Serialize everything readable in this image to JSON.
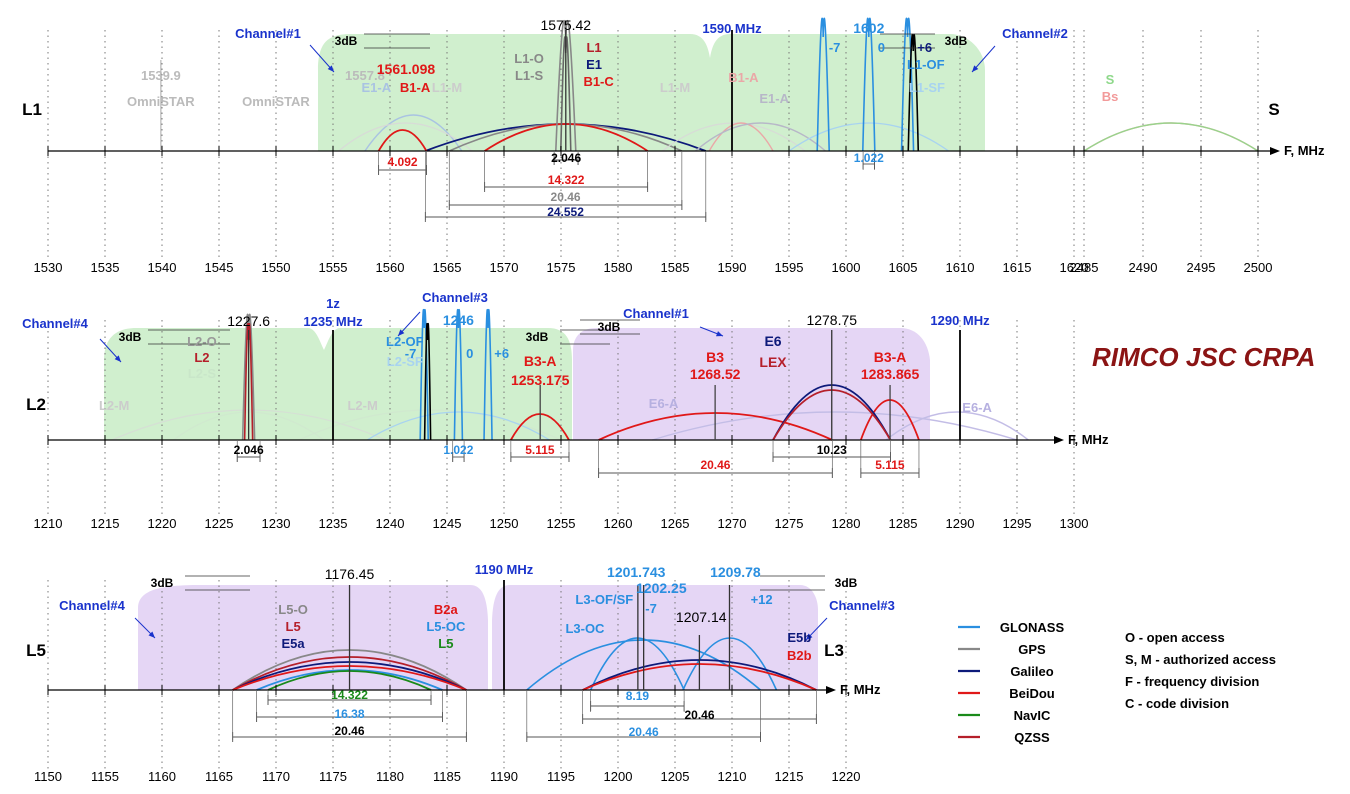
{
  "brand": "RIMCO JSC CRPA",
  "colors": {
    "glonass": "#2a8fe0",
    "gps": "#888888",
    "galileo": "#0d1a7a",
    "beidou": "#e01818",
    "navic": "#1a8a1a",
    "qzss": "#b51f2a",
    "channel_green": "#c8ecc6",
    "channel_purple": "#e2d2f4",
    "channel_label": "#1a33cc",
    "axis": "#000000"
  },
  "legend": [
    {
      "name": "GLONASS",
      "color": "#2a8fe0"
    },
    {
      "name": "GPS",
      "color": "#888888"
    },
    {
      "name": "Galileo",
      "color": "#0d1a7a"
    },
    {
      "name": "BeiDou",
      "color": "#e01818"
    },
    {
      "name": "NavIC",
      "color": "#1a8a1a"
    },
    {
      "name": "QZSS",
      "color": "#b51f2a"
    }
  ],
  "notes": [
    "O - open access",
    "S, M - authorized access",
    "F - frequency division",
    "C - code division"
  ],
  "panels": {
    "l1": {
      "band": "L1",
      "band_right": "S",
      "axis_label": "F, MHz",
      "ticks": [
        "1530",
        "1535",
        "1540",
        "1545",
        "1550",
        "1555",
        "1560",
        "1565",
        "1570",
        "1575",
        "1580",
        "1585",
        "1590",
        "1595",
        "1600",
        "1605",
        "1610",
        "1615",
        "1620",
        "2485",
        "2490",
        "2495",
        "2500"
      ],
      "channels": [
        "Channel#1",
        "Channel#2"
      ],
      "divider": "1590 MHz",
      "db3": "3dB",
      "labels": {
        "omni1_f": "1539.9",
        "omni1": "OmniSTAR",
        "omni2_f": "1557.8",
        "omni2": "OmniSTAR",
        "b1a_f": "1561.098",
        "b1a": "B1-A",
        "e1a_left": "E1-A",
        "l1m_left": "L1-M",
        "center_f": "1575.42",
        "l1o": "L1-O",
        "l1s": "L1-S",
        "l1": "L1",
        "e1": "E1",
        "b1c": "B1-C",
        "l1m_right": "L1-M",
        "b1a_right": "B1-A",
        "e1a_right": "E1-A",
        "g_center": "1602",
        "m7": "-7",
        "z0": "0",
        "p6": "+6",
        "l1of": "L1-OF",
        "l1sf": "L1-SF",
        "s": "S",
        "bs": "Bs"
      },
      "spans": [
        "4.092",
        "2.046",
        "14.322",
        "20.46",
        "24.552",
        "1.022"
      ]
    },
    "l2": {
      "band": "L2",
      "axis_label": "F, MHz",
      "ticks": [
        "1210",
        "1215",
        "1220",
        "1225",
        "1230",
        "1235",
        "1240",
        "1245",
        "1250",
        "1255",
        "1260",
        "1265",
        "1270",
        "1275",
        "1280",
        "1285",
        "1290",
        "1295",
        "1300"
      ],
      "channels": [
        "Channel#4",
        "Channel#3",
        "Channel#1"
      ],
      "db3": "3dB",
      "labels": {
        "l2m": "L2-M",
        "center_f": "1227.6",
        "l2o": "L2-O",
        "l2": "L2",
        "l2s": "L2-S",
        "div_1z": "1z",
        "div": "1235 MHz",
        "l2m2": "L2-M",
        "l2of": "L2-OF",
        "l2sf": "L2-SF",
        "g_center": "1246",
        "m7": "-7",
        "z0": "0",
        "p6": "+6",
        "b3a": "B3-A",
        "b3a_f": "1253.175",
        "e6a": "E6-A",
        "b3": "B3",
        "b3_f": "1268.52",
        "e6": "E6",
        "lex": "LEX",
        "e6_f": "1278.75",
        "b3a2": "B3-A",
        "b3a2_f": "1283.865",
        "e6a2": "E6-A",
        "div2": "1290 MHz"
      },
      "spans": [
        "2.046",
        "1.022",
        "5.115",
        "20.46",
        "10.23",
        "5.115"
      ]
    },
    "l5": {
      "band": "L5",
      "band_right": "L3",
      "axis_label": "F, MHz",
      "ticks": [
        "1150",
        "1155",
        "1160",
        "1165",
        "1170",
        "1175",
        "1180",
        "1185",
        "1190",
        "1195",
        "1200",
        "1205",
        "1210",
        "1215",
        "1220"
      ],
      "channels": [
        "Channel#4",
        "Channel#3"
      ],
      "db3": "3dB",
      "labels": {
        "center_f": "1176.45",
        "l5o": "L5-O",
        "l5": "L5",
        "e5a": "E5a",
        "b2a": "B2a",
        "l5oc": "L5-OC",
        "l5n": "L5",
        "div": "1190 MHz",
        "g1_f": "1201.743",
        "g2_f": "1202.25",
        "g3_f": "1209.78",
        "l3of": "L3-OF/SF",
        "m7": "-7",
        "p12": "+12",
        "g4_f": "1207.14",
        "l3oc": "L3-OC",
        "e5b": "E5b",
        "b2b": "B2b"
      },
      "spans": [
        "14.322",
        "16.38",
        "20.46",
        "8.19",
        "20.46",
        "20.46"
      ]
    }
  }
}
